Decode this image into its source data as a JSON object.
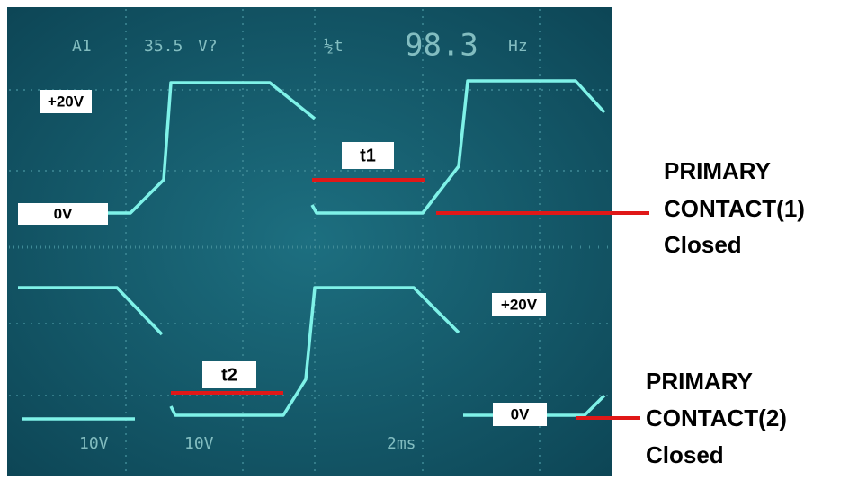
{
  "scope": {
    "readouts_top": [
      "A1",
      "35.5",
      "V?",
      "½t",
      "98.3",
      "Hz"
    ],
    "readouts_bottom": [
      "10V",
      "10V",
      "2ms"
    ]
  },
  "labels": {
    "top_high": "+20V",
    "top_low": "0V",
    "t1": "t1",
    "t2": "t2",
    "bottom_high": "+20V",
    "bottom_low": "0V"
  },
  "annotations": [
    {
      "lines": [
        "PRIMARY",
        "CONTACT(1)",
        "Closed"
      ]
    },
    {
      "lines": [
        "PRIMARY",
        "CONTACT(2)",
        "Closed"
      ]
    }
  ]
}
